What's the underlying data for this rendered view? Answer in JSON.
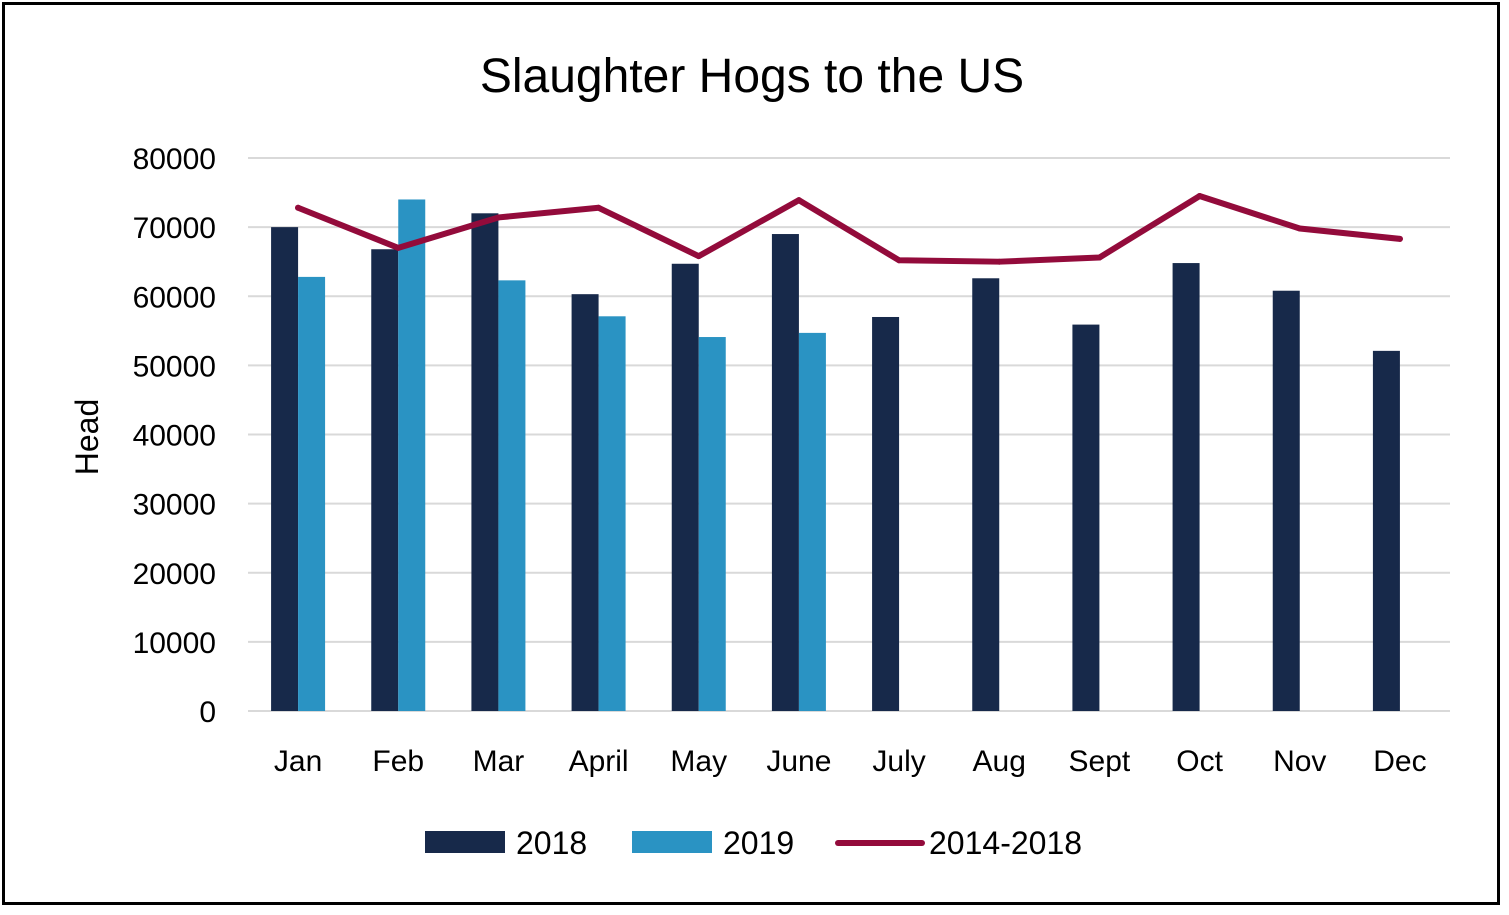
{
  "chart_data": {
    "type": "bar",
    "title": "Slaughter Hogs to the US",
    "ylabel": "Head",
    "xlabel": "",
    "ylim": [
      0,
      80000
    ],
    "yticks": [
      0,
      10000,
      20000,
      30000,
      40000,
      50000,
      60000,
      70000,
      80000
    ],
    "grid": true,
    "legend_position": "bottom",
    "categories": [
      "Jan",
      "Feb",
      "Mar",
      "April",
      "May",
      "June",
      "July",
      "Aug",
      "Sept",
      "Oct",
      "Nov",
      "Dec"
    ],
    "series": [
      {
        "name": "2018",
        "type": "bar",
        "color": "#17294a",
        "values": [
          70000,
          66800,
          72000,
          60300,
          64700,
          69000,
          57000,
          62600,
          55900,
          64800,
          60800,
          52100
        ]
      },
      {
        "name": "2019",
        "type": "bar",
        "color": "#2a93c3",
        "values": [
          62800,
          74000,
          62300,
          57100,
          54100,
          54700,
          null,
          null,
          null,
          null,
          null,
          null
        ]
      },
      {
        "name": "2014-2018",
        "type": "line",
        "color": "#930b3b",
        "values": [
          72800,
          67000,
          71400,
          72800,
          65800,
          73900,
          65200,
          65000,
          65600,
          74500,
          69800,
          68300
        ]
      }
    ]
  }
}
